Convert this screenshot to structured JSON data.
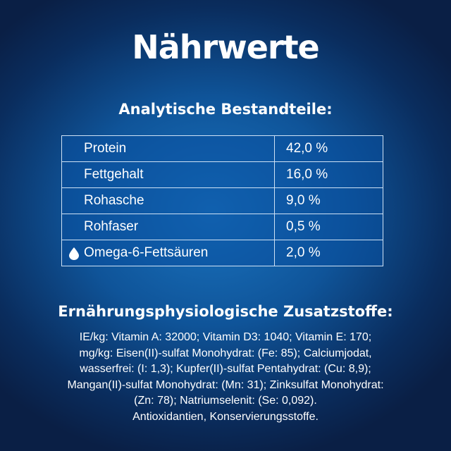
{
  "title": "Nährwerte",
  "analytic": {
    "heading": "Analytische Bestandteile:",
    "rows": [
      {
        "name": "Protein",
        "value": "42,0 %"
      },
      {
        "name": "Fettgehalt",
        "value": "16,0 %"
      },
      {
        "name": "Rohasche",
        "value": "9,0 %"
      },
      {
        "name": "Rohfaser",
        "value": "0,5 %"
      },
      {
        "name": "Omega-6-Fettsäuren",
        "value": "2,0 %",
        "icon": "water-drop-icon"
      }
    ]
  },
  "additives": {
    "heading": "Ernährungsphysiologische Zusatzstoffe:",
    "lines": [
      "IE/kg: Vitamin A: 32000; Vitamin D3: 1040; Vitamin E: 170;",
      "mg/kg: Eisen(II)-sulfat Monohydrat: (Fe: 85); Calciumjodat,",
      "wasserfrei: (I: 1,3); Kupfer(II)-sulfat Pentahydrat: (Cu: 8,9);",
      "Mangan(II)-sulfat Monohydrat: (Mn: 31); Zinksulfat Monohydrat:",
      "(Zn: 78); Natriumselenit: (Se: 0,092).",
      "Antioxidantien, Konservierungsstoffe."
    ]
  }
}
